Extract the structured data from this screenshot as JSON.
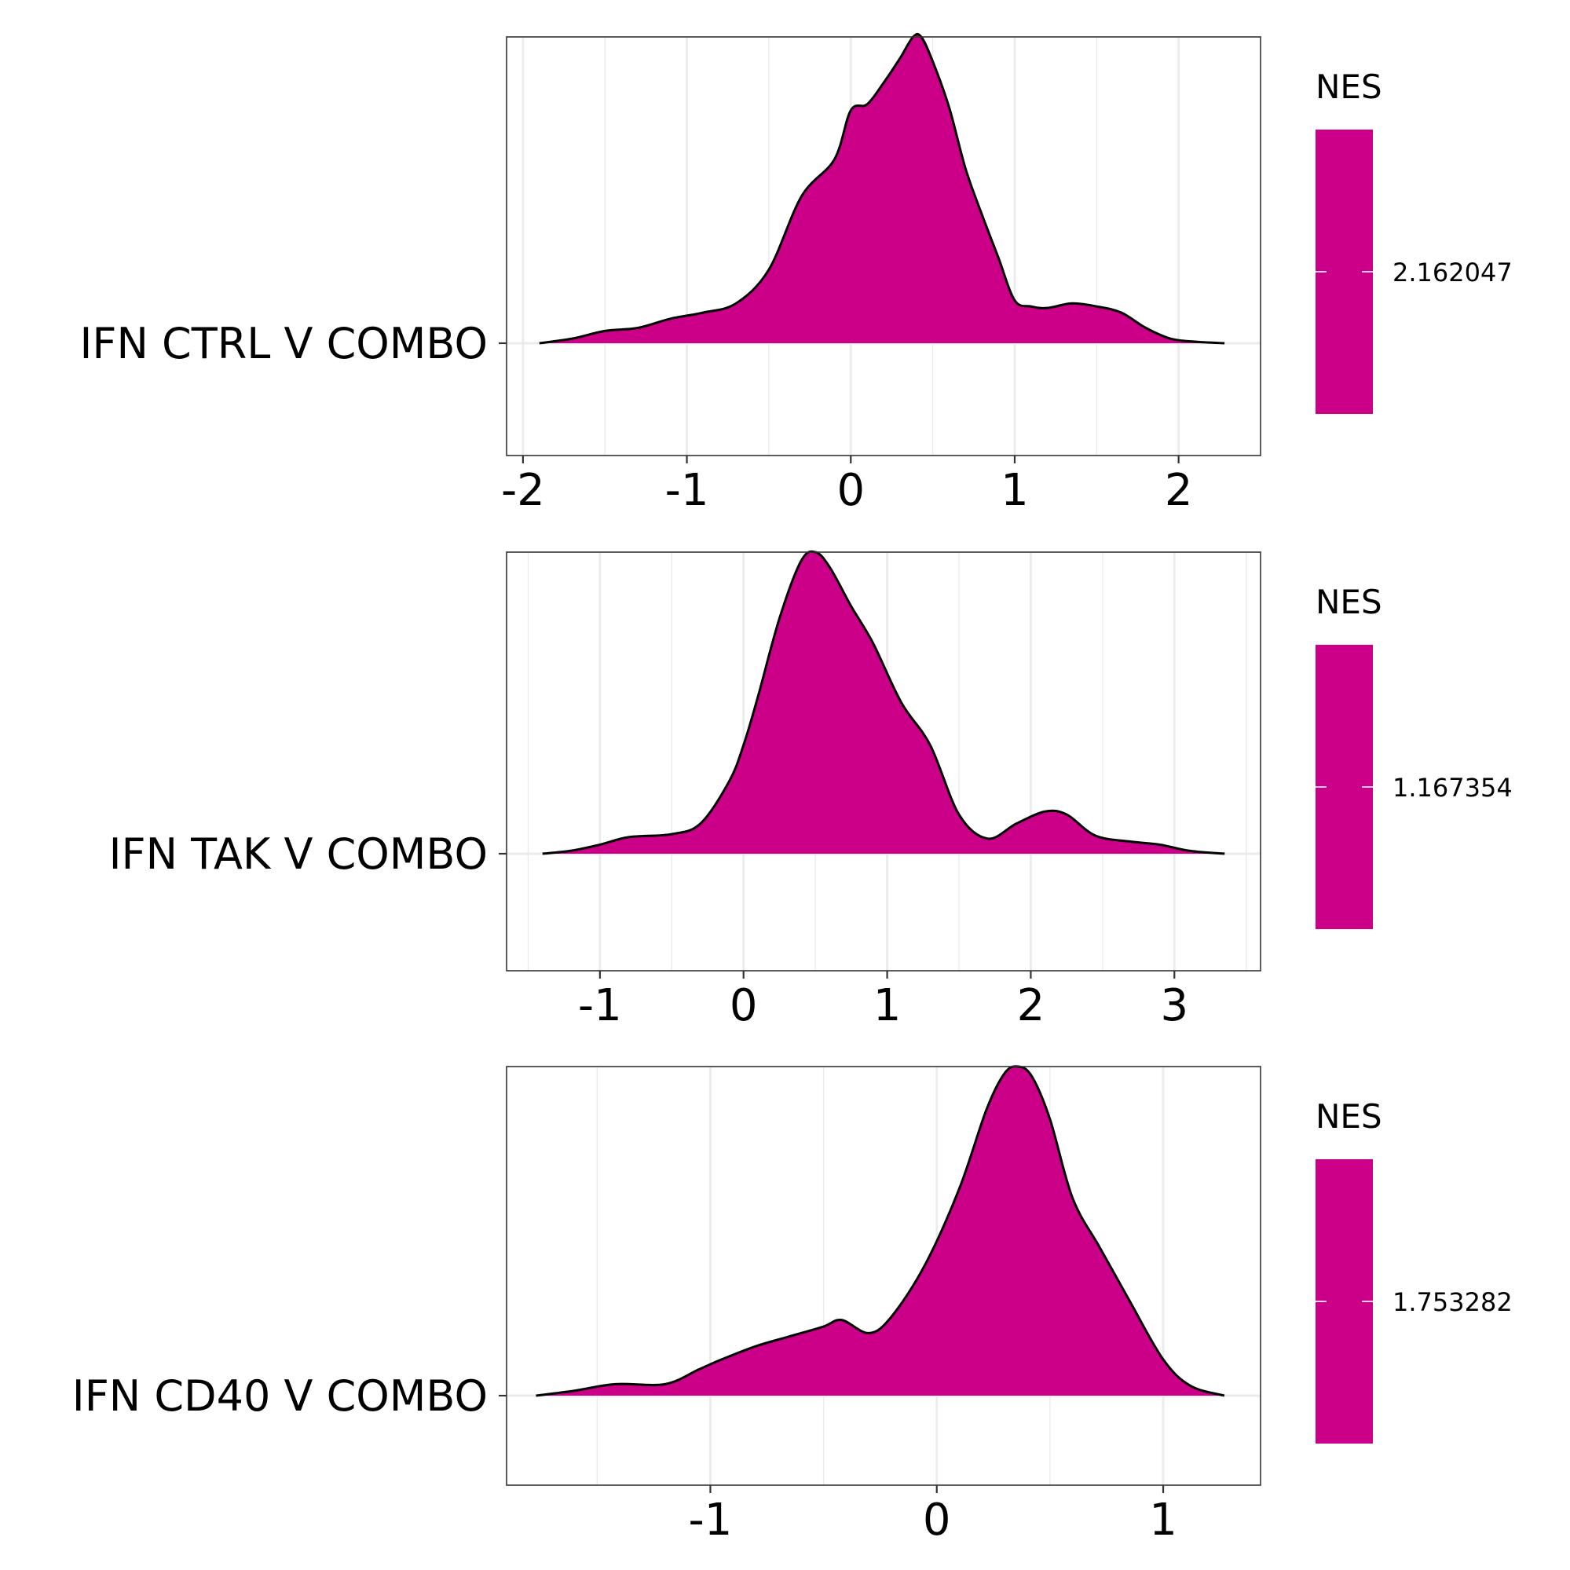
{
  "fill_color": "#CC0088",
  "chart_data": [
    {
      "type": "area",
      "subtype": "ridgeline-density",
      "category": "IFN CTRL V COMBO",
      "xticks": [
        -2,
        -1,
        0,
        1,
        2
      ],
      "xlim": [
        -2.1,
        2.5
      ],
      "grid": true,
      "legend": {
        "title": "NES",
        "position": "right",
        "label": "2.162047"
      },
      "density": {
        "x": [
          -1.9,
          -1.7,
          -1.5,
          -1.3,
          -1.1,
          -0.9,
          -0.7,
          -0.5,
          -0.3,
          -0.1,
          0.0,
          0.1,
          0.2,
          0.3,
          0.38,
          0.43,
          0.5,
          0.6,
          0.7,
          0.8,
          0.9,
          1.0,
          1.1,
          1.2,
          1.35,
          1.5,
          1.65,
          1.8,
          1.95,
          2.1,
          2.28
        ],
        "y": [
          0.0,
          0.015,
          0.04,
          0.05,
          0.08,
          0.1,
          0.13,
          0.24,
          0.48,
          0.6,
          0.76,
          0.78,
          0.85,
          0.93,
          1.0,
          1.0,
          0.92,
          0.77,
          0.57,
          0.42,
          0.28,
          0.14,
          0.12,
          0.115,
          0.13,
          0.12,
          0.1,
          0.05,
          0.015,
          0.005,
          0.0
        ]
      }
    },
    {
      "type": "area",
      "subtype": "ridgeline-density",
      "category": "IFN TAK V COMBO",
      "xticks": [
        -1,
        0,
        1,
        2,
        3
      ],
      "xlim": [
        -1.65,
        3.6
      ],
      "grid": true,
      "legend": {
        "title": "NES",
        "position": "right",
        "label": "1.167354"
      },
      "density": {
        "x": [
          -1.4,
          -1.2,
          -1.0,
          -0.8,
          -0.5,
          -0.3,
          -0.1,
          0.0,
          0.1,
          0.25,
          0.4,
          0.5,
          0.6,
          0.75,
          0.9,
          1.1,
          1.3,
          1.5,
          1.7,
          1.9,
          2.1,
          2.25,
          2.45,
          2.7,
          2.9,
          3.1,
          3.35
        ],
        "y": [
          0.0,
          0.01,
          0.03,
          0.055,
          0.065,
          0.1,
          0.24,
          0.36,
          0.52,
          0.78,
          0.97,
          1.0,
          0.95,
          0.82,
          0.7,
          0.5,
          0.36,
          0.13,
          0.05,
          0.1,
          0.14,
          0.13,
          0.06,
          0.04,
          0.03,
          0.01,
          0.0
        ]
      }
    },
    {
      "type": "area",
      "subtype": "ridgeline-density",
      "category": "IFN CD40 V COMBO",
      "xticks": [
        -1,
        0,
        1
      ],
      "xlim": [
        -1.9,
        1.43
      ],
      "grid": true,
      "legend": {
        "title": "NES",
        "position": "right",
        "label": "1.753282"
      },
      "density": {
        "x": [
          -1.77,
          -1.6,
          -1.42,
          -1.2,
          -1.05,
          -0.95,
          -0.8,
          -0.65,
          -0.5,
          -0.42,
          -0.3,
          -0.2,
          -0.05,
          0.1,
          0.22,
          0.3,
          0.36,
          0.42,
          0.5,
          0.6,
          0.72,
          0.85,
          1.0,
          1.12,
          1.27
        ],
        "y": [
          0.0,
          0.015,
          0.035,
          0.035,
          0.08,
          0.11,
          0.15,
          0.18,
          0.21,
          0.23,
          0.19,
          0.24,
          0.4,
          0.63,
          0.87,
          0.98,
          1.0,
          0.97,
          0.84,
          0.6,
          0.45,
          0.29,
          0.11,
          0.03,
          0.0
        ]
      }
    }
  ]
}
